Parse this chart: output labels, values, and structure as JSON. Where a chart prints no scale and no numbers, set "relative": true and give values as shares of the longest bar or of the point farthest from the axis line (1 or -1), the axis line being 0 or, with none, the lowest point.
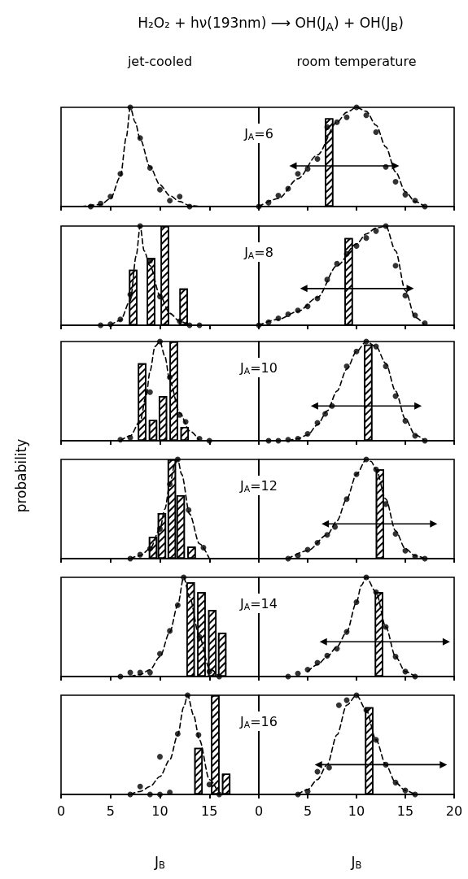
{
  "chart_data": [
    {
      "type": "line",
      "title": "H₂O₂ + hν(193nm) ⟶ OH(J$_{A}$) + OH(J$_{B}$)",
      "subtitle": "jet-cooled",
      "relative": true,
      "xlim": [
        0,
        20
      ],
      "xticks": [
        0,
        5,
        10,
        15
      ],
      "tick_labels": false,
      "series": [
        {
          "line_style": "dashed",
          "color": "#000000",
          "x": [
            2,
            4,
            5,
            6,
            6.6,
            7,
            7.5,
            8,
            9,
            10,
            11,
            12,
            13,
            14
          ],
          "values": [
            0,
            0.02,
            0.08,
            0.3,
            0.7,
            1,
            0.85,
            0.68,
            0.4,
            0.22,
            0.11,
            0.05,
            0.01,
            0
          ]
        },
        {
          "type": "scatter",
          "marker": "circle",
          "color": "#000000",
          "x": [
            3,
            4,
            5,
            6,
            7,
            8,
            9,
            10,
            11,
            12,
            13
          ],
          "values": [
            0,
            0.03,
            0.1,
            0.33,
            1,
            0.69,
            0.39,
            0.17,
            0.06,
            0.1,
            0
          ]
        }
      ]
    },
    {
      "type": "bar",
      "subtitle": "room temperature",
      "relative": true,
      "xlim": [
        0,
        20
      ],
      "xticks": [
        0,
        5,
        10,
        15,
        20
      ],
      "tick_labels": false,
      "annotations": [
        "J$_{A}$=6"
      ],
      "series": [
        {
          "color": "#000000",
          "x": [
            7.2
          ],
          "values": [
            0.89
          ]
        },
        {
          "type": "line",
          "line_style": "dashed",
          "color": "#000000",
          "x": [
            0,
            2,
            4,
            6,
            8,
            9,
            10,
            11,
            12,
            13,
            14,
            15,
            16,
            17
          ],
          "values": [
            0,
            0.08,
            0.28,
            0.52,
            0.85,
            0.95,
            1,
            0.96,
            0.82,
            0.6,
            0.35,
            0.15,
            0.05,
            0
          ]
        },
        {
          "type": "scatter",
          "marker": "circle",
          "color": "#000000",
          "x": [
            0,
            1,
            2,
            3,
            4,
            5,
            6,
            7,
            8,
            9,
            10,
            11,
            12,
            13,
            14,
            15,
            16,
            17
          ],
          "values": [
            0,
            0.04,
            0.11,
            0.18,
            0.33,
            0.38,
            0.48,
            0.8,
            0.85,
            0.9,
            1,
            0.92,
            0.75,
            0.4,
            0.25,
            0.12,
            0.06,
            0
          ]
        },
        {
          "type": "line",
          "marker": "triangle",
          "line_style": "solid",
          "color": "#000000",
          "x": [
            3.5,
            14
          ],
          "values": [
            0.41,
            0.41
          ]
        }
      ]
    },
    {
      "type": "bar",
      "relative": true,
      "xlim": [
        0,
        20
      ],
      "xticks": [
        0,
        5,
        10,
        15
      ],
      "tick_labels": false,
      "series": [
        {
          "color": "#000000",
          "x": [
            7.3,
            9.1,
            10.5,
            12.4
          ],
          "values": [
            0.56,
            0.68,
            1,
            0.37
          ]
        },
        {
          "type": "line",
          "line_style": "dashed",
          "color": "#000000",
          "x": [
            5,
            6,
            7,
            7.6,
            8,
            8.4,
            9,
            10,
            11,
            12,
            13
          ],
          "values": [
            0,
            0.05,
            0.25,
            0.7,
            1,
            0.75,
            0.6,
            0.3,
            0.12,
            0.04,
            0
          ]
        },
        {
          "type": "scatter",
          "marker": "circle",
          "color": "#000000",
          "x": [
            4,
            5,
            6,
            7,
            8,
            9,
            10,
            12,
            13,
            14
          ],
          "values": [
            0,
            0.01,
            0.06,
            0.31,
            1,
            0.65,
            0.29,
            0.04,
            0,
            0
          ]
        }
      ]
    },
    {
      "type": "bar",
      "relative": true,
      "xlim": [
        0,
        20
      ],
      "xticks": [
        0,
        5,
        10,
        15,
        20
      ],
      "tick_labels": false,
      "annotations": [
        "J$_{A}$=8"
      ],
      "series": [
        {
          "color": "#000000",
          "x": [
            9.2
          ],
          "values": [
            0.88
          ]
        },
        {
          "type": "line",
          "line_style": "dashed",
          "color": "#000000",
          "x": [
            0,
            2,
            4,
            6,
            8,
            10,
            11,
            12,
            13,
            14,
            15,
            16,
            17
          ],
          "values": [
            0,
            0.06,
            0.14,
            0.28,
            0.6,
            0.82,
            0.92,
            0.98,
            1,
            0.75,
            0.35,
            0.08,
            0
          ]
        },
        {
          "type": "scatter",
          "marker": "circle",
          "color": "#000000",
          "x": [
            0,
            1,
            2,
            3,
            4,
            5,
            6,
            7,
            8,
            9,
            10,
            11,
            12,
            13,
            14,
            15,
            16,
            17
          ],
          "values": [
            0,
            0.03,
            0.07,
            0.11,
            0.15,
            0.19,
            0.27,
            0.46,
            0.62,
            0.72,
            0.8,
            0.88,
            0.95,
            1,
            0.6,
            0.3,
            0.1,
            0.02
          ]
        },
        {
          "type": "line",
          "marker": "triangle",
          "line_style": "solid",
          "color": "#000000",
          "x": [
            4.6,
            15.5
          ],
          "values": [
            0.37,
            0.37
          ]
        }
      ]
    },
    {
      "type": "bar",
      "relative": true,
      "xlim": [
        0,
        20
      ],
      "xticks": [
        0,
        5,
        10,
        15
      ],
      "tick_labels": false,
      "series": [
        {
          "color": "#000000",
          "x": [
            8.2,
            9.3,
            10.3,
            11.4,
            12.5
          ],
          "values": [
            0.78,
            0.21,
            0.45,
            1,
            0.14
          ]
        },
        {
          "type": "line",
          "line_style": "dashed",
          "color": "#000000",
          "x": [
            6,
            7,
            8,
            8.6,
            9,
            9.5,
            10,
            10.5,
            11,
            12,
            13,
            14
          ],
          "values": [
            0,
            0.05,
            0.2,
            0.45,
            0.7,
            0.95,
            1,
            0.85,
            0.6,
            0.28,
            0.1,
            0
          ]
        },
        {
          "type": "scatter",
          "marker": "circle",
          "color": "#000000",
          "x": [
            6,
            7,
            9,
            10,
            11,
            12,
            12.6,
            14,
            15
          ],
          "values": [
            0.01,
            0.03,
            0.49,
            1,
            0.64,
            0.26,
            0.19,
            0.02,
            0
          ]
        }
      ]
    },
    {
      "type": "bar",
      "relative": true,
      "xlim": [
        0,
        20
      ],
      "xticks": [
        0,
        5,
        10,
        15,
        20
      ],
      "tick_labels": false,
      "annotations": [
        "J$_{A}$=10"
      ],
      "series": [
        {
          "color": "#000000",
          "x": [
            11.2
          ],
          "values": [
            0.97
          ]
        },
        {
          "type": "line",
          "line_style": "dashed",
          "color": "#000000",
          "x": [
            3,
            4,
            5,
            6,
            7,
            8,
            9,
            10,
            11,
            12,
            13,
            14,
            15,
            16,
            17
          ],
          "values": [
            0,
            0.02,
            0.06,
            0.16,
            0.3,
            0.5,
            0.72,
            0.9,
            1,
            0.95,
            0.78,
            0.5,
            0.22,
            0.06,
            0
          ]
        },
        {
          "type": "scatter",
          "marker": "circle",
          "color": "#000000",
          "x": [
            1,
            2,
            3,
            4,
            5,
            6,
            6.8,
            7.5,
            9,
            10,
            11,
            12,
            13,
            14,
            15,
            16,
            17
          ],
          "values": [
            0,
            0,
            0.01,
            0.02,
            0.07,
            0.18,
            0.27,
            0.35,
            0.75,
            0.9,
            1,
            0.95,
            0.75,
            0.45,
            0.2,
            0.05,
            0
          ]
        },
        {
          "type": "line",
          "marker": "triangle",
          "line_style": "solid",
          "color": "#000000",
          "x": [
            5.7,
            16.3
          ],
          "values": [
            0.35,
            0.35
          ]
        }
      ]
    },
    {
      "type": "bar",
      "ylabel": "probability",
      "relative": true,
      "xlim": [
        0,
        20
      ],
      "xticks": [
        0,
        5,
        10,
        15
      ],
      "tick_labels": false,
      "series": [
        {
          "color": "#000000",
          "x": [
            9.3,
            10.2,
            11.2,
            12.1,
            13.2
          ],
          "values": [
            0.22,
            0.46,
            1,
            0.64,
            0.12
          ]
        },
        {
          "type": "line",
          "line_style": "dashed",
          "color": "#000000",
          "x": [
            7,
            8,
            9,
            10,
            10.5,
            11,
            11.5,
            11.8,
            12.2,
            13,
            14,
            15
          ],
          "values": [
            0,
            0.03,
            0.1,
            0.3,
            0.5,
            0.75,
            0.95,
            1,
            0.85,
            0.45,
            0.15,
            0
          ]
        },
        {
          "type": "scatter",
          "marker": "circle",
          "color": "#000000",
          "x": [
            7,
            8,
            9,
            10,
            11,
            11.8,
            12.9,
            14.4
          ],
          "values": [
            0,
            0.04,
            0.1,
            0.3,
            0.75,
            1,
            0.49,
            0.11
          ]
        }
      ]
    },
    {
      "type": "bar",
      "relative": true,
      "xlim": [
        0,
        20
      ],
      "xticks": [
        0,
        5,
        10,
        15,
        20
      ],
      "tick_labels": false,
      "annotations": [
        "J$_{A}$=12"
      ],
      "series": [
        {
          "color": "#000000",
          "x": [
            12.4
          ],
          "values": [
            0.9
          ]
        },
        {
          "type": "line",
          "line_style": "dashed",
          "color": "#000000",
          "x": [
            3,
            5,
            7,
            8,
            9,
            10,
            11,
            11.5,
            12,
            13,
            14,
            15,
            16,
            17
          ],
          "values": [
            0,
            0.08,
            0.24,
            0.38,
            0.6,
            0.85,
            1,
            0.98,
            0.9,
            0.6,
            0.28,
            0.1,
            0.03,
            0
          ]
        },
        {
          "type": "scatter",
          "marker": "circle",
          "color": "#000000",
          "x": [
            3,
            4,
            5,
            6,
            7,
            7.8,
            9,
            10,
            11,
            12,
            13,
            14,
            15,
            16,
            17
          ],
          "values": [
            0,
            0.03,
            0.09,
            0.16,
            0.24,
            0.32,
            0.6,
            0.85,
            1,
            0.9,
            0.55,
            0.25,
            0.08,
            0.02,
            0
          ]
        },
        {
          "type": "line",
          "marker": "triangle",
          "line_style": "solid",
          "color": "#000000",
          "x": [
            6.8,
            17.9
          ],
          "values": [
            0.35,
            0.35
          ]
        }
      ]
    },
    {
      "type": "bar",
      "relative": true,
      "xlim": [
        0,
        20
      ],
      "xticks": [
        0,
        5,
        10,
        15
      ],
      "tick_labels": false,
      "series": [
        {
          "color": "#000000",
          "x": [
            13.1,
            14.2,
            15.3,
            16.3
          ],
          "values": [
            0.95,
            0.85,
            0.67,
            0.44
          ]
        },
        {
          "type": "line",
          "line_style": "dashed",
          "color": "#000000",
          "x": [
            7,
            8,
            9,
            10,
            11,
            11.8,
            12.4,
            13,
            14,
            15,
            16
          ],
          "values": [
            0,
            0.02,
            0.07,
            0.2,
            0.45,
            0.72,
            1,
            0.8,
            0.4,
            0.08,
            0
          ]
        },
        {
          "type": "scatter",
          "marker": "circle",
          "color": "#000000",
          "x": [
            6,
            7,
            8,
            9,
            10,
            11,
            11.8,
            12.4,
            14,
            15,
            16
          ],
          "values": [
            0,
            0.04,
            0.04,
            0.04,
            0.23,
            0.46,
            0.72,
            1,
            0.4,
            0.05,
            0
          ]
        }
      ]
    },
    {
      "type": "bar",
      "relative": true,
      "xlim": [
        0,
        20
      ],
      "xticks": [
        0,
        5,
        10,
        15,
        20
      ],
      "tick_labels": false,
      "annotations": [
        "J$_{A}$=14"
      ],
      "series": [
        {
          "color": "#000000",
          "x": [
            12.3
          ],
          "values": [
            0.85
          ]
        },
        {
          "type": "line",
          "line_style": "dashed",
          "color": "#000000",
          "x": [
            5,
            6,
            7,
            8,
            9,
            10,
            10.5,
            11,
            12,
            13,
            14,
            15,
            16
          ],
          "values": [
            0.05,
            0.12,
            0.2,
            0.3,
            0.45,
            0.75,
            0.92,
            1,
            0.85,
            0.5,
            0.2,
            0.05,
            0
          ]
        },
        {
          "type": "scatter",
          "marker": "circle",
          "color": "#000000",
          "x": [
            3,
            4,
            5,
            6,
            7,
            8,
            9,
            10,
            11,
            12,
            13,
            14,
            15,
            16
          ],
          "values": [
            0,
            0.03,
            0.07,
            0.14,
            0.21,
            0.28,
            0.45,
            0.75,
            1,
            0.85,
            0.5,
            0.2,
            0.05,
            0
          ]
        },
        {
          "type": "line",
          "marker": "triangle",
          "line_style": "solid",
          "color": "#000000",
          "x": [
            6.6,
            19.2
          ],
          "values": [
            0.35,
            0.35
          ]
        }
      ]
    },
    {
      "type": "bar",
      "xlabel": "J$_{B}$",
      "relative": true,
      "xlim": [
        0,
        20
      ],
      "xticks": [
        0,
        5,
        10,
        15
      ],
      "tick_labels": "x",
      "series": [
        {
          "color": "#000000",
          "x": [
            13.9,
            15.6,
            16.7
          ],
          "values": [
            0.47,
            1,
            0.21
          ]
        },
        {
          "type": "line",
          "line_style": "dashed",
          "color": "#000000",
          "x": [
            7,
            8,
            9,
            10,
            11,
            11.8,
            12.4,
            12.8,
            13.4,
            14,
            15,
            16
          ],
          "values": [
            0,
            0.03,
            0.08,
            0.18,
            0.35,
            0.6,
            0.88,
            1,
            0.8,
            0.55,
            0.15,
            0
          ]
        },
        {
          "type": "scatter",
          "marker": "circle",
          "color": "#000000",
          "x": [
            7,
            8,
            9,
            10,
            10,
            11,
            11.8,
            12.8,
            13.9,
            15,
            16
          ],
          "values": [
            0,
            0.08,
            0,
            0.38,
            0,
            0.02,
            0.61,
            1,
            0.6,
            0.1,
            0
          ]
        }
      ]
    },
    {
      "type": "bar",
      "xlabel": "J$_{B}$",
      "relative": true,
      "xlim": [
        0,
        20
      ],
      "xticks": [
        0,
        5,
        10,
        15,
        20
      ],
      "tick_labels": "x",
      "annotations": [
        "J$_{A}$=16"
      ],
      "series": [
        {
          "color": "#000000",
          "x": [
            11.3
          ],
          "values": [
            0.88
          ]
        },
        {
          "type": "line",
          "line_style": "dashed",
          "color": "#000000",
          "x": [
            4,
            5,
            6,
            7,
            8,
            9,
            10,
            11,
            12,
            13,
            14,
            15,
            16
          ],
          "values": [
            0,
            0.05,
            0.15,
            0.3,
            0.6,
            0.9,
            1,
            0.85,
            0.55,
            0.3,
            0.12,
            0.04,
            0
          ]
        },
        {
          "type": "scatter",
          "marker": "circle",
          "color": "#000000",
          "x": [
            4,
            5,
            6,
            7.2,
            8.2,
            9,
            10,
            11,
            12,
            13,
            14,
            15,
            16
          ],
          "values": [
            0,
            0.03,
            0.23,
            0.27,
            0.9,
            0.95,
            1,
            0.85,
            0.55,
            0.3,
            0.12,
            0.04,
            0
          ]
        },
        {
          "type": "line",
          "marker": "triangle",
          "line_style": "solid",
          "color": "#000000",
          "x": [
            6.1,
            18.9
          ],
          "values": [
            0.3,
            0.3
          ]
        }
      ]
    }
  ]
}
